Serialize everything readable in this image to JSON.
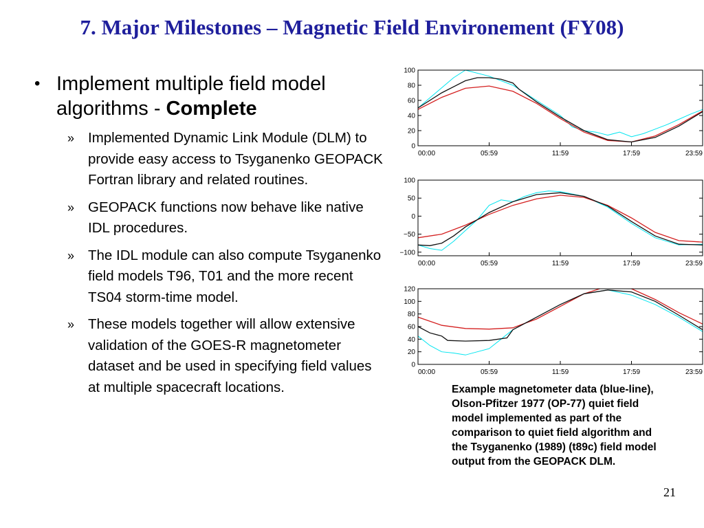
{
  "slide": {
    "title": "7. Major Milestones – Magnetic Field Environement (FY08)",
    "bullet": {
      "symbol": "•",
      "text": "Implement multiple field model algorithms - ",
      "bold": "Complete"
    },
    "sub_marker": "»",
    "sub_bullets": [
      "Implemented Dynamic Link Module (DLM) to provide easy access to Tsyganenko GEOPACK Fortran library and related routines.",
      "GEOPACK functions now behave like native IDL procedures.",
      "The IDL module can also compute Tsyganenko field models T96, T01 and the more recent TS04 storm-time model.",
      "These models together will allow extensive validation of the GOES-R magnetometer dataset and be used in specifying field values at multiple spacecraft locations."
    ],
    "caption": "Example magnetometer data (blue-line), Olson-Pfitzer 1977 (OP-77) quiet field model implemented as part of the comparison to quiet field algorithm and the Tsyganenko (1989) (t89c) field model output from the GEOPACK DLM.",
    "page_number": "21"
  },
  "colors": {
    "title": "#1f1f9c",
    "data_line": "#00e5f0",
    "op77_line": "#d42020",
    "t89_line": "#111111"
  },
  "chart_data": [
    {
      "type": "line",
      "x_tick_labels": [
        "00:00",
        "05:59",
        "11:59",
        "17:59",
        "23:59"
      ],
      "xlim": [
        0,
        24
      ],
      "ylim": [
        0,
        100
      ],
      "y_ticks": [
        0,
        20,
        40,
        60,
        80,
        100
      ],
      "y_tick_labels": [
        "0",
        "20",
        "40",
        "60",
        "80",
        "100"
      ],
      "series": [
        {
          "role": "data",
          "color": "#00e5f0",
          "x": [
            0,
            1.5,
            3,
            4,
            6,
            8,
            10,
            12,
            13,
            14,
            15,
            16,
            17,
            18,
            19,
            20,
            21,
            22,
            23,
            24
          ],
          "y": [
            50,
            70,
            90,
            100,
            92,
            80,
            60,
            40,
            25,
            20,
            18,
            14,
            18,
            12,
            16,
            22,
            28,
            35,
            42,
            48
          ]
        },
        {
          "role": "op77",
          "color": "#d42020",
          "x": [
            0,
            2,
            4,
            6,
            8,
            10,
            12,
            14,
            16,
            18,
            20,
            22,
            24
          ],
          "y": [
            48,
            64,
            76,
            79,
            72,
            56,
            36,
            18,
            7,
            5,
            13,
            28,
            46
          ]
        },
        {
          "role": "t89",
          "color": "#111111",
          "x": [
            0,
            2,
            4,
            5,
            6,
            7,
            8,
            8.5,
            10,
            12,
            14,
            16,
            18,
            20,
            22,
            24
          ],
          "y": [
            50,
            70,
            86,
            90,
            90,
            88,
            83,
            75,
            58,
            38,
            20,
            8,
            5,
            11,
            26,
            45
          ]
        }
      ]
    },
    {
      "type": "line",
      "x_tick_labels": [
        "00:00",
        "05:59",
        "11:59",
        "17:59",
        "23:59"
      ],
      "xlim": [
        0,
        24
      ],
      "ylim": [
        -110,
        100
      ],
      "y_ticks": [
        -100,
        -50,
        0,
        50,
        100
      ],
      "y_tick_labels": [
        "−100",
        "−50",
        "0",
        "50",
        "100"
      ],
      "series": [
        {
          "role": "data",
          "color": "#00e5f0",
          "x": [
            0,
            1,
            2,
            3,
            4,
            5,
            6,
            7,
            8,
            9,
            10,
            11,
            12,
            14,
            16,
            18,
            20,
            22,
            24
          ],
          "y": [
            -80,
            -90,
            -95,
            -70,
            -40,
            -10,
            30,
            45,
            40,
            55,
            65,
            70,
            68,
            55,
            25,
            -20,
            -60,
            -80,
            -78
          ]
        },
        {
          "role": "op77",
          "color": "#d42020",
          "x": [
            0,
            2,
            4,
            6,
            8,
            10,
            12,
            14,
            16,
            18,
            20,
            22,
            24
          ],
          "y": [
            -60,
            -50,
            -25,
            5,
            30,
            48,
            58,
            52,
            30,
            -5,
            -45,
            -68,
            -72
          ]
        },
        {
          "role": "t89",
          "color": "#111111",
          "x": [
            0,
            1,
            2,
            3,
            4,
            6,
            8,
            10,
            12,
            14,
            16,
            18,
            20,
            22,
            24
          ],
          "y": [
            -80,
            -82,
            -75,
            -55,
            -30,
            10,
            40,
            60,
            65,
            55,
            28,
            -15,
            -55,
            -78,
            -80
          ]
        }
      ]
    },
    {
      "type": "line",
      "x_tick_labels": [
        "00:00",
        "05:59",
        "11:59",
        "17:59",
        "23:59"
      ],
      "xlim": [
        0,
        24
      ],
      "ylim": [
        0,
        120
      ],
      "y_ticks": [
        0,
        20,
        40,
        60,
        80,
        100,
        120
      ],
      "y_tick_labels": [
        "0",
        "20",
        "40",
        "60",
        "80",
        "100",
        "120"
      ],
      "series": [
        {
          "role": "data",
          "color": "#00e5f0",
          "x": [
            0,
            1,
            2,
            3,
            4,
            5,
            6,
            7,
            8,
            10,
            12,
            14,
            16,
            18,
            20,
            22,
            24
          ],
          "y": [
            45,
            30,
            20,
            18,
            15,
            20,
            25,
            40,
            55,
            75,
            95,
            112,
            118,
            110,
            95,
            75,
            52
          ]
        },
        {
          "role": "op77",
          "color": "#d42020",
          "x": [
            0,
            2,
            4,
            6,
            8,
            10,
            12,
            14,
            16,
            18,
            20,
            22,
            24
          ],
          "y": [
            75,
            62,
            57,
            56,
            58,
            72,
            92,
            112,
            124,
            120,
            103,
            82,
            64
          ]
        },
        {
          "role": "t89",
          "color": "#111111",
          "x": [
            0,
            1,
            2,
            2.5,
            4,
            6,
            7.5,
            8,
            10,
            12,
            14,
            16,
            18,
            20,
            22,
            24
          ],
          "y": [
            60,
            50,
            45,
            38,
            37,
            38,
            42,
            55,
            75,
            95,
            112,
            118,
            115,
            100,
            78,
            55
          ]
        }
      ]
    }
  ]
}
